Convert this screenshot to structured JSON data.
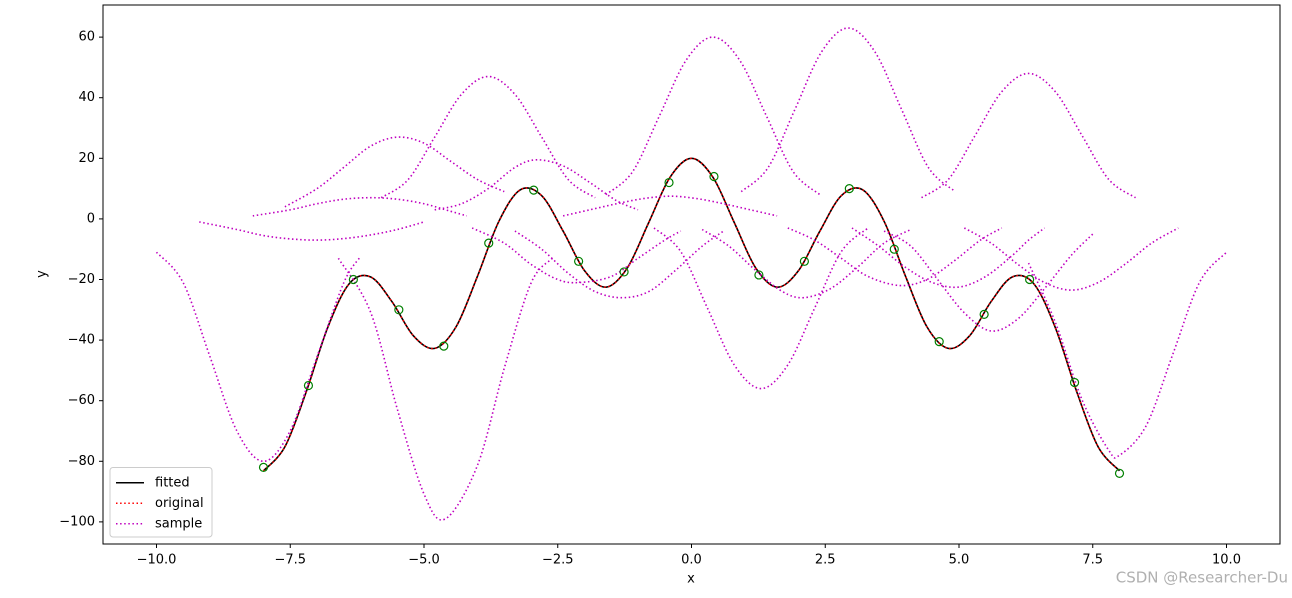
{
  "chart_data": {
    "type": "line",
    "x_label": "x",
    "y_label": "y",
    "xlim": [
      -11,
      11
    ],
    "ylim": [
      -107.3,
      70.6
    ],
    "xticks": [
      {
        "value": -10,
        "label": "−10.0"
      },
      {
        "value": -7.5,
        "label": "−7.5"
      },
      {
        "value": -5,
        "label": "−5.0"
      },
      {
        "value": -2.5,
        "label": "−2.5"
      },
      {
        "value": 0,
        "label": "0.0"
      },
      {
        "value": 2.5,
        "label": "2.5"
      },
      {
        "value": 5,
        "label": "5.0"
      },
      {
        "value": 7.5,
        "label": "7.5"
      },
      {
        "value": 10,
        "label": "10.0"
      }
    ],
    "yticks": [
      {
        "value": -100,
        "label": "−100"
      },
      {
        "value": -80,
        "label": "−80"
      },
      {
        "value": -60,
        "label": "−60"
      },
      {
        "value": -40,
        "label": "−40"
      },
      {
        "value": -20,
        "label": "−20"
      },
      0,
      20,
      40,
      60
    ],
    "legend_loc": "lower left",
    "watermark": "CSDN @Researcher-Du",
    "series": [
      {
        "name": "fitted",
        "color": "#000000",
        "linestyle": "solid",
        "x": [
          -8,
          -7.6,
          -7.2,
          -6.8,
          -6.4,
          -6,
          -5.6,
          -5.2,
          -4.8,
          -4.4,
          -4,
          -3.6,
          -3.2,
          -2.8,
          -2.4,
          -2,
          -1.6,
          -1.2,
          -0.8,
          -0.4,
          0,
          0.4,
          0.8,
          1.2,
          1.6,
          2,
          2.4,
          2.8,
          3.2,
          3.6,
          4,
          4.4,
          4.8,
          5.2,
          5.6,
          6,
          6.4,
          6.8,
          7.2,
          7.6,
          8
        ],
        "values": [
          -83.15,
          -75.21,
          -57,
          -35.86,
          -21.43,
          -19.12,
          -27.29,
          -38.54,
          -42.73,
          -35.59,
          -18.91,
          -0.79,
          9.62,
          7.67,
          -4.01,
          -17.07,
          -22.53,
          -16.19,
          -1.22,
          13.77,
          20,
          13.77,
          -1.22,
          -16.19,
          -22.53,
          -17.07,
          -4.01,
          7.67,
          9.62,
          -0.79,
          -18.91,
          -35.59,
          -42.73,
          -38.54,
          -27.29,
          -19.12,
          -21.43,
          -35.86,
          -57,
          -75.21,
          -83.15
        ]
      },
      {
        "name": "original",
        "color": "#ff0000",
        "linestyle": "dotted",
        "x": [
          -8,
          -7.6,
          -7.2,
          -6.8,
          -6.4,
          -6,
          -5.6,
          -5.2,
          -4.8,
          -4.4,
          -4,
          -3.6,
          -3.2,
          -2.8,
          -2.4,
          -2,
          -1.6,
          -1.2,
          -0.8,
          -0.4,
          0,
          0.4,
          0.8,
          1.2,
          1.6,
          2,
          2.4,
          2.8,
          3.2,
          3.6,
          4,
          4.4,
          4.8,
          5.2,
          5.6,
          6,
          6.4,
          6.8,
          7.2,
          7.6,
          8
        ],
        "values": [
          -83.15,
          -75.21,
          -57,
          -35.86,
          -21.43,
          -19.12,
          -27.29,
          -38.54,
          -42.73,
          -35.59,
          -18.91,
          -0.79,
          9.62,
          7.67,
          -4.01,
          -17.07,
          -22.53,
          -16.19,
          -1.22,
          13.77,
          20,
          13.77,
          -1.22,
          -16.19,
          -22.53,
          -17.07,
          -4.01,
          7.67,
          9.62,
          -0.79,
          -18.91,
          -35.59,
          -42.73,
          -38.54,
          -27.29,
          -19.12,
          -21.43,
          -35.86,
          -57,
          -75.21,
          -83.15
        ]
      },
      {
        "name": "sample",
        "color": "#bf00bf",
        "linestyle": "dotted",
        "x": [
          -10,
          -9.5,
          -9,
          -8.5,
          -8,
          -7.5,
          -7,
          -6.5,
          -6.2,
          null,
          -9.2,
          -8.5,
          -8,
          -7.5,
          -7,
          -6.5,
          -6,
          -5.5,
          -5,
          null,
          -8.2,
          -7.5,
          -7,
          -6.5,
          -6,
          -5.5,
          -5,
          -4.5,
          -4.2,
          null,
          -7.6,
          -7,
          -6.5,
          -6,
          -5.5,
          -5,
          -4.5,
          -4,
          -3.5,
          null,
          -6.6,
          -6,
          -5.5,
          -5,
          -4.6,
          -4,
          -3.5,
          -3,
          -2.6,
          null,
          -5.8,
          -5.3,
          -4.8,
          -4.3,
          -3.8,
          -3.3,
          -2.8,
          -2.3,
          -1.8,
          null,
          -4.8,
          -4.3,
          -3.8,
          -3.3,
          -2.9,
          -2.4,
          -1.9,
          -1.4,
          -1,
          null,
          -4.1,
          -3.5,
          -3,
          -2.5,
          -2.1,
          -1.5,
          -1,
          -0.5,
          -0.2,
          null,
          -3.3,
          -2.8,
          -2.3,
          -1.8,
          -1.3,
          -0.8,
          -0.3,
          0.2,
          0.6,
          null,
          -1.6,
          -1.1,
          -0.6,
          -0.1,
          0.4,
          0.9,
          1.4,
          1.9,
          2.4,
          null,
          -2.4,
          -1.9,
          -1.4,
          -0.9,
          -0.4,
          0.1,
          0.6,
          1.1,
          1.6,
          null,
          -0.7,
          -0.2,
          0.3,
          0.8,
          1.3,
          1.8,
          2.3,
          2.8,
          3.3,
          null,
          0.2,
          0.7,
          1.2,
          1.7,
          2.1,
          2.6,
          3.1,
          3.6,
          4.1,
          null,
          1.8,
          2.3,
          2.8,
          3.3,
          3.9,
          4.4,
          4.9,
          5.4,
          5.8,
          null,
          0.93,
          1.43,
          1.93,
          2.43,
          2.93,
          3.43,
          3.93,
          4.43,
          4.93,
          null,
          4.3,
          4.8,
          5.3,
          5.8,
          6.3,
          6.8,
          7.3,
          7.8,
          8.3,
          null,
          3.6,
          4.1,
          4.6,
          5.1,
          5.6,
          6.1,
          6.6,
          7.1,
          7.5,
          null,
          5.1,
          5.6,
          6.1,
          6.6,
          7.1,
          7.6,
          8.1,
          8.6,
          9.1,
          null,
          3,
          3.5,
          4,
          4.5,
          5,
          5.5,
          6,
          6.3,
          6.6,
          null,
          6.3,
          6.8,
          7.3,
          7.8,
          8,
          8.5,
          9,
          9.5,
          10
        ],
        "values": [
          -11,
          -21.1,
          -45.5,
          -69.9,
          -80,
          -69.9,
          -45.5,
          -21.1,
          -12.7,
          null,
          -1,
          -3.5,
          -5.5,
          -6.6,
          -7,
          -6.5,
          -5.3,
          -3.5,
          -1,
          null,
          1,
          3,
          5,
          6.5,
          7,
          6.5,
          5,
          2.5,
          1,
          null,
          4,
          10,
          17,
          24,
          27,
          25,
          19,
          13,
          9,
          null,
          -13,
          -30.7,
          -62.7,
          -90.8,
          -99,
          -81.3,
          -49.3,
          -21.2,
          -13,
          null,
          7,
          12.9,
          27,
          41.1,
          47,
          41.1,
          27,
          12.9,
          7,
          null,
          3,
          5,
          10,
          17,
          19.5,
          17.5,
          12,
          6,
          3,
          null,
          -3,
          -8,
          -15,
          -20,
          -21,
          -19,
          -13,
          -7,
          -4,
          null,
          -4,
          -10,
          -18,
          -24,
          -26,
          -24,
          -17,
          -9,
          -4,
          null,
          8,
          15.6,
          34,
          52.4,
          60,
          52.4,
          34,
          15.6,
          8,
          null,
          1,
          3,
          5,
          6.7,
          7.5,
          6.7,
          5,
          3,
          1,
          null,
          -3,
          -10.8,
          -29.5,
          -48.2,
          -56,
          -48.2,
          -29.5,
          -10.8,
          -3,
          null,
          -3.5,
          -9,
          -17,
          -24,
          -26,
          -23,
          -16,
          -8,
          -3.5,
          null,
          -3,
          -7,
          -13,
          -19,
          -22,
          -20,
          -14,
          -7,
          -3,
          null,
          9,
          16.9,
          36,
          55.1,
          63,
          55.1,
          36,
          16.9,
          9,
          null,
          7,
          13,
          27.5,
          42,
          48,
          42,
          27.5,
          13,
          7,
          null,
          -4,
          -9,
          -20,
          -31,
          -37,
          -33,
          -23,
          -12,
          -5,
          null,
          -3,
          -8,
          -15,
          -21,
          -23.5,
          -21,
          -15,
          -8,
          -3,
          null,
          -3,
          -9,
          -16,
          -21,
          -22.5,
          -19,
          -12,
          -7,
          -3,
          null,
          -14.6,
          -34.1,
          -59.7,
          -76.4,
          -78,
          -68.2,
          -44.5,
          -20.8,
          -11
        ]
      },
      {
        "color": "#008000",
        "linestyle": "none",
        "marker": "circle",
        "x": [
          -8,
          -7.16,
          -6.32,
          -5.47,
          -4.63,
          -3.79,
          -2.95,
          -2.11,
          -1.26,
          -0.42,
          0.42,
          1.26,
          2.11,
          2.95,
          3.79,
          4.63,
          5.47,
          6.32,
          7.16,
          8
        ],
        "values": [
          -82,
          -55,
          -20,
          -30,
          -42,
          -8,
          9.5,
          -14,
          -17.5,
          12,
          14,
          -18.5,
          -14,
          10,
          -10,
          -40.5,
          -31.5,
          -20,
          -54,
          -84
        ]
      }
    ]
  }
}
